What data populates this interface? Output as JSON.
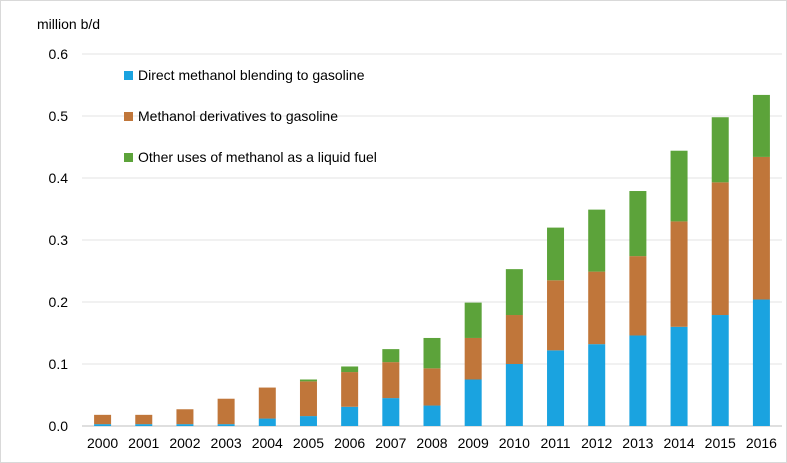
{
  "chart_data": {
    "type": "bar",
    "stacked": true,
    "title": "",
    "ylabel": "million b/d",
    "xlabel": "",
    "ylim": [
      0,
      0.6
    ],
    "yticks": [
      "0.0",
      "0.1",
      "0.2",
      "0.3",
      "0.4",
      "0.5",
      "0.6"
    ],
    "grid": true,
    "legend_position": "top-left",
    "categories": [
      "2000",
      "2001",
      "2002",
      "2003",
      "2004",
      "2005",
      "2006",
      "2007",
      "2008",
      "2009",
      "2010",
      "2011",
      "2012",
      "2013",
      "2014",
      "2015",
      "2016"
    ],
    "series": [
      {
        "name": "Direct methanol blending to gasoline",
        "color": "#1aa3e0",
        "values": [
          0.003,
          0.003,
          0.003,
          0.003,
          0.012,
          0.016,
          0.031,
          0.045,
          0.033,
          0.075,
          0.1,
          0.122,
          0.132,
          0.146,
          0.16,
          0.179,
          0.204
        ]
      },
      {
        "name": "Methanol derivatives to gasoline",
        "color": "#c0763a",
        "values": [
          0.015,
          0.015,
          0.024,
          0.041,
          0.05,
          0.056,
          0.056,
          0.058,
          0.06,
          0.067,
          0.079,
          0.113,
          0.117,
          0.128,
          0.17,
          0.214,
          0.23
        ]
      },
      {
        "name": "Other uses of methanol as a liquid fuel",
        "color": "#5ca33a",
        "values": [
          0.0,
          0.0,
          0.0,
          0.0,
          0.0,
          0.003,
          0.009,
          0.021,
          0.049,
          0.057,
          0.074,
          0.085,
          0.1,
          0.105,
          0.114,
          0.105,
          0.1
        ]
      }
    ]
  }
}
